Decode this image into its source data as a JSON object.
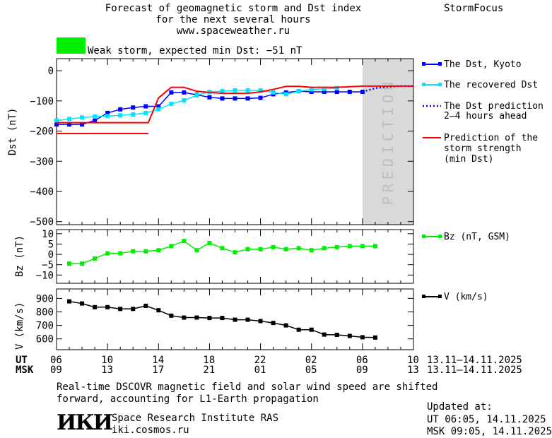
{
  "header": {
    "title_line1": "Forecast of geomagnetic storm and Dst index",
    "title_line2": "for the next several hours",
    "url": "www.spaceweather.ru",
    "brand": "StormFocus",
    "storm_text": "Weak storm, expected min Dst: −51 nT",
    "storm_color": "#00ee00"
  },
  "legend": {
    "dst_kyoto": "The Dst, Kyoto",
    "dst_recovered": "The recovered Dst",
    "dst_pred_1": "The Dst prediction",
    "dst_pred_2": "2–4 hours ahead",
    "strength_1": "Prediction of the",
    "strength_2": "storm strength",
    "strength_3": "(min Dst)",
    "bz": "Bz (nT, GSM)",
    "v": "V (km/s)"
  },
  "prediction_label": "PREDICTION",
  "axes": {
    "ut_label": "UT",
    "msk_label": "MSK",
    "ut_ticks": [
      "06",
      "10",
      "14",
      "18",
      "22",
      "02",
      "06",
      "10"
    ],
    "msk_ticks": [
      "09",
      "13",
      "17",
      "21",
      "01",
      "05",
      "09",
      "13"
    ],
    "date_range_ut": "13.11–14.11.2025",
    "date_range_msk": "13.11–14.11.2025"
  },
  "footer": {
    "note_line1": "Real-time DSCOVR magnetic field and solar wind speed are shifted",
    "note_line2": "forward, accounting for L1-Earth propagation",
    "logo_text": "ИКИ",
    "institute": "Space Research Institute RAS",
    "site": "iki.cosmos.ru",
    "updated_label": "Updated at:",
    "updated_ut": "UT   06:05, 14.11.2025",
    "updated_msk": "MSK 09:05, 14.11.2025"
  },
  "chart_data": [
    {
      "type": "line",
      "ylabel": "Dst (nT)",
      "ylim": [
        -510,
        40
      ],
      "xlim_hours": [
        6,
        34
      ],
      "y_ticks": [
        0,
        -100,
        -200,
        -300,
        -400,
        -500
      ],
      "y_tick_labels": [
        "0",
        "−100",
        "−200",
        "−300",
        "−400",
        "−500"
      ],
      "prediction_shade_hours": [
        30,
        34
      ],
      "series": [
        {
          "name": "The Dst, Kyoto",
          "color": "#0000ff",
          "x": [
            6,
            7,
            8,
            9,
            10,
            11,
            12,
            13,
            14,
            15,
            16,
            17,
            18,
            19,
            20,
            21,
            22,
            23,
            24,
            25,
            26,
            27,
            28,
            29,
            30
          ],
          "y": [
            -178,
            -178,
            -178,
            -165,
            -140,
            -128,
            -122,
            -118,
            -118,
            -72,
            -72,
            -80,
            -88,
            -92,
            -92,
            -92,
            -90,
            -78,
            -72,
            -68,
            -70,
            -70,
            -70,
            -70,
            -70
          ]
        },
        {
          "name": "The recovered Dst",
          "color": "#00e5ff",
          "x": [
            6,
            7,
            8,
            9,
            10,
            11,
            12,
            13,
            14,
            15,
            16,
            17,
            18,
            19,
            20,
            21,
            22,
            23,
            24,
            25,
            26,
            27,
            28
          ],
          "y": [
            -165,
            -160,
            -155,
            -152,
            -150,
            -148,
            -145,
            -140,
            -128,
            -110,
            -98,
            -82,
            -70,
            -68,
            -65,
            -65,
            -65,
            -72,
            -78,
            -68,
            -62,
            -60,
            -58
          ]
        },
        {
          "name": "The Dst prediction 2–4 hours ahead",
          "color": "#0000ff",
          "x": [
            30,
            31,
            32,
            33,
            34
          ],
          "y": [
            -70,
            -58,
            -53,
            -51,
            -51
          ]
        },
        {
          "name": "Prediction of the storm strength (min Dst)",
          "color": "#ff0000",
          "x": [
            6,
            13.2,
            14,
            15,
            16,
            17,
            18,
            19,
            20,
            21,
            22,
            23,
            24,
            25,
            26,
            27,
            28,
            29,
            30,
            31,
            32,
            33,
            34
          ],
          "y": [
            -172,
            -172,
            -90,
            -55,
            -55,
            -68,
            -72,
            -75,
            -75,
            -75,
            -70,
            -62,
            -52,
            -52,
            -55,
            -55,
            -55,
            -53,
            -51,
            -51,
            -51,
            -51,
            -51
          ]
        },
        {
          "name": "",
          "color": "#ff0000",
          "x": [
            6,
            13.2
          ],
          "y": [
            -208,
            -208
          ]
        }
      ]
    },
    {
      "type": "line",
      "ylabel": "Bz (nT)",
      "ylim": [
        -14,
        12
      ],
      "xlim_hours": [
        6,
        34
      ],
      "y_ticks": [
        10,
        5,
        0,
        -5,
        -10
      ],
      "y_tick_labels": [
        "10",
        "5",
        "0",
        "−5",
        "−10"
      ],
      "series": [
        {
          "name": "Bz (nT, GSM)",
          "color": "#00ee00",
          "x": [
            7,
            8,
            9,
            10,
            11,
            12,
            13,
            14,
            15,
            16,
            17,
            18,
            19,
            20,
            21,
            22,
            23,
            24,
            25,
            26,
            27,
            28,
            29,
            30,
            31
          ],
          "y": [
            -4.5,
            -4.5,
            -2,
            0.5,
            0.5,
            1.5,
            1.5,
            2,
            4,
            6.5,
            2,
            5.5,
            3,
            1,
            2.5,
            2.5,
            3.5,
            2.5,
            3,
            2,
            3,
            3.5,
            4,
            4,
            4
          ]
        }
      ]
    },
    {
      "type": "line",
      "ylabel": "V (km/s)",
      "ylim": [
        520,
        970
      ],
      "xlim_hours": [
        6,
        34
      ],
      "y_ticks": [
        900,
        800,
        700,
        600
      ],
      "y_tick_labels": [
        "900",
        "800",
        "700",
        "600"
      ],
      "series": [
        {
          "name": "V (km/s)",
          "color": "#000000",
          "x": [
            7,
            8,
            9,
            10,
            11,
            12,
            13,
            14,
            15,
            16,
            17,
            18,
            19,
            20,
            21,
            22,
            23,
            24,
            25,
            26,
            27,
            28,
            29,
            30,
            31
          ],
          "y": [
            878,
            862,
            835,
            835,
            822,
            822,
            845,
            812,
            772,
            758,
            758,
            755,
            755,
            742,
            742,
            732,
            718,
            700,
            668,
            668,
            632,
            630,
            622,
            612,
            610
          ]
        }
      ]
    }
  ]
}
